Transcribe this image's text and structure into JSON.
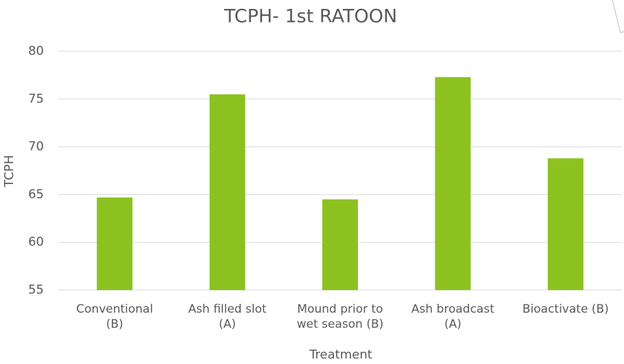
{
  "chart_data": {
    "type": "bar",
    "title": "TCPH- 1st RATOON",
    "x_label": "Treatment",
    "y_label": "TCPH",
    "categories": [
      "Conventional\n(B)",
      "Ash filled slot\n(A)",
      "Mound prior to\nwet season (B)",
      "Ash broadcast\n(A)",
      "Bioactivate (B)"
    ],
    "values": [
      64.7,
      75.5,
      64.5,
      77.3,
      68.8
    ],
    "color": "#8cc220",
    "ylim": [
      55,
      80
    ],
    "yticks": [
      55,
      60,
      65,
      70,
      75,
      80
    ],
    "grid": true
  }
}
